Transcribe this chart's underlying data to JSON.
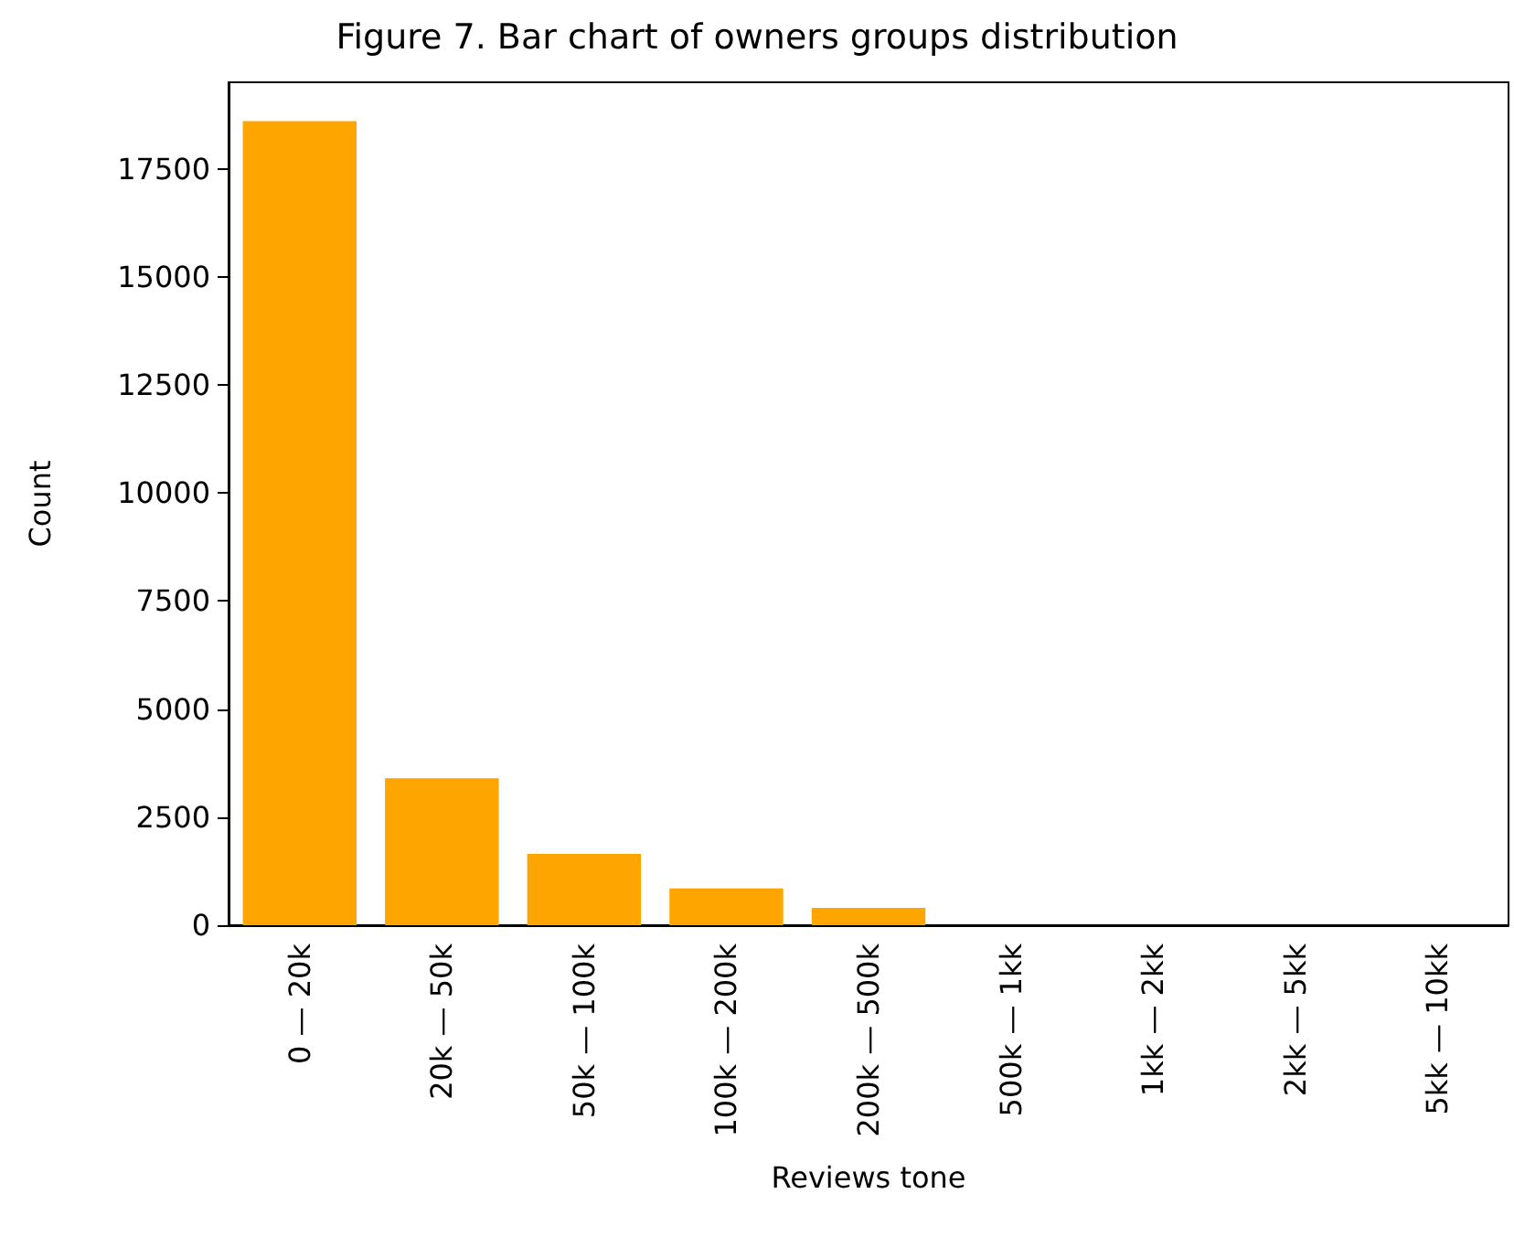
{
  "chart_data": {
    "type": "bar",
    "title": "Figure 7. Bar chart of owners groups distribution",
    "xlabel": "Reviews tone",
    "ylabel": "Count",
    "categories": [
      "0 — 20k",
      "20k — 50k",
      "50k — 100k",
      "100k — 200k",
      "200k — 500k",
      "500k — 1kk",
      "1kk — 2kk",
      "2kk — 5kk",
      "5kk — 10kk"
    ],
    "values": [
      18600,
      3400,
      1650,
      850,
      400,
      0,
      0,
      0,
      0
    ],
    "color": "#ffa500",
    "ylim": [
      0,
      19500
    ],
    "yticks": [
      0,
      2500,
      5000,
      7500,
      10000,
      12500,
      15000,
      17500
    ],
    "grid": false
  }
}
